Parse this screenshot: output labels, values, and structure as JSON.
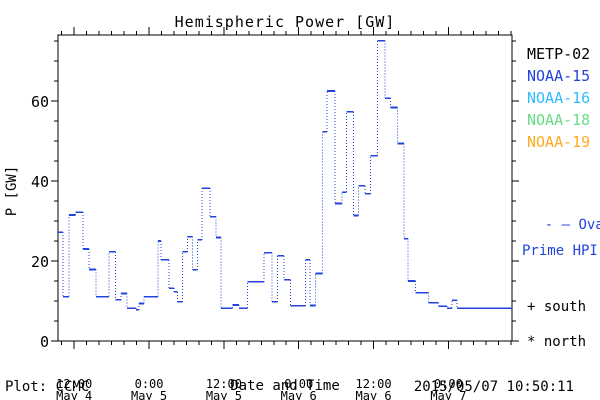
{
  "title": "Hemispheric Power [GW]",
  "footer": {
    "plot_source": "Plot: CCMC",
    "timestamp": "2015/05/07 10:50:11"
  },
  "legend": {
    "satellites": [
      {
        "label": "METP-02",
        "color": "#000000"
      },
      {
        "label": "NOAA-15",
        "color": "#2244dd"
      },
      {
        "label": "NOAA-16",
        "color": "#33bbff"
      },
      {
        "label": "NOAA-18",
        "color": "#66dd88"
      },
      {
        "label": "NOAA-19",
        "color": "#ffaa22"
      }
    ],
    "ovation": {
      "sample": "- —",
      "line1": "Ovation",
      "line2": "Prime HPI",
      "color": "#2244dd"
    },
    "markers": [
      {
        "symbol_and_label": "+ south"
      },
      {
        "symbol_and_label": "* north"
      }
    ]
  },
  "chart_data": {
    "type": "line",
    "subtype": "step-with-dotted-connectors",
    "title": "Hemispheric Power [GW]",
    "xlabel": "Date and Time",
    "ylabel": "P [GW]",
    "series_name": "Ovation Prime HPI",
    "line_color": "#2244dd",
    "axis_color": "#000000",
    "x_unit": "hours since 2015-05-04 00:00 UT",
    "xlim": [
      9.4,
      82.2
    ],
    "ylim": [
      0,
      76.5
    ],
    "x_ticks": [
      {
        "h": 12,
        "time": "12:00",
        "date": "May 4"
      },
      {
        "h": 24,
        "time": "0:00",
        "date": "May 5"
      },
      {
        "h": 36,
        "time": "12:00",
        "date": "May 5"
      },
      {
        "h": 48,
        "time": "0:00",
        "date": "May 6"
      },
      {
        "h": 60,
        "time": "12:00",
        "date": "May 6"
      },
      {
        "h": 72,
        "time": "0:00",
        "date": "May 7"
      }
    ],
    "x_minor_step_h": 2,
    "y_ticks": [
      0,
      20,
      40,
      60
    ],
    "y_minor_step": 5,
    "grid": false,
    "t_end_h": 82.2,
    "points_h_gw": [
      [
        9.4,
        27.2
      ],
      [
        10.2,
        11.1
      ],
      [
        11.2,
        31.5
      ],
      [
        12.2,
        32.2
      ],
      [
        13.4,
        23.0
      ],
      [
        14.4,
        17.9
      ],
      [
        15.5,
        11.1
      ],
      [
        17.6,
        22.3
      ],
      [
        18.6,
        10.3
      ],
      [
        19.5,
        11.9
      ],
      [
        20.5,
        8.2
      ],
      [
        21.9,
        7.8
      ],
      [
        22.4,
        9.4
      ],
      [
        23.2,
        11.1
      ],
      [
        25.4,
        25.0
      ],
      [
        25.9,
        20.3
      ],
      [
        27.2,
        13.2
      ],
      [
        28.0,
        12.3
      ],
      [
        28.6,
        9.8
      ],
      [
        29.4,
        22.3
      ],
      [
        30.2,
        26.1
      ],
      [
        31.0,
        17.8
      ],
      [
        31.8,
        25.3
      ],
      [
        32.5,
        38.2
      ],
      [
        33.8,
        31.1
      ],
      [
        34.7,
        25.9
      ],
      [
        35.5,
        8.2
      ],
      [
        37.4,
        9.0
      ],
      [
        38.4,
        8.2
      ],
      [
        39.8,
        14.8
      ],
      [
        42.4,
        22.1
      ],
      [
        43.7,
        9.8
      ],
      [
        44.6,
        21.3
      ],
      [
        45.6,
        15.3
      ],
      [
        46.7,
        8.8
      ],
      [
        49.1,
        20.3
      ],
      [
        49.8,
        8.9
      ],
      [
        50.7,
        16.9
      ],
      [
        51.8,
        52.3
      ],
      [
        52.5,
        62.5
      ],
      [
        53.8,
        34.4
      ],
      [
        54.9,
        37.2
      ],
      [
        55.7,
        57.3
      ],
      [
        56.8,
        31.4
      ],
      [
        57.6,
        38.8
      ],
      [
        58.6,
        36.8
      ],
      [
        59.5,
        46.3
      ],
      [
        60.6,
        75.1
      ],
      [
        61.8,
        60.7
      ],
      [
        62.7,
        58.4
      ],
      [
        63.8,
        49.4
      ],
      [
        64.9,
        25.6
      ],
      [
        65.5,
        15.0
      ],
      [
        66.7,
        12.1
      ],
      [
        68.8,
        9.6
      ],
      [
        70.4,
        8.7
      ],
      [
        71.8,
        8.2
      ],
      [
        72.6,
        10.2
      ],
      [
        73.4,
        8.2
      ]
    ]
  }
}
